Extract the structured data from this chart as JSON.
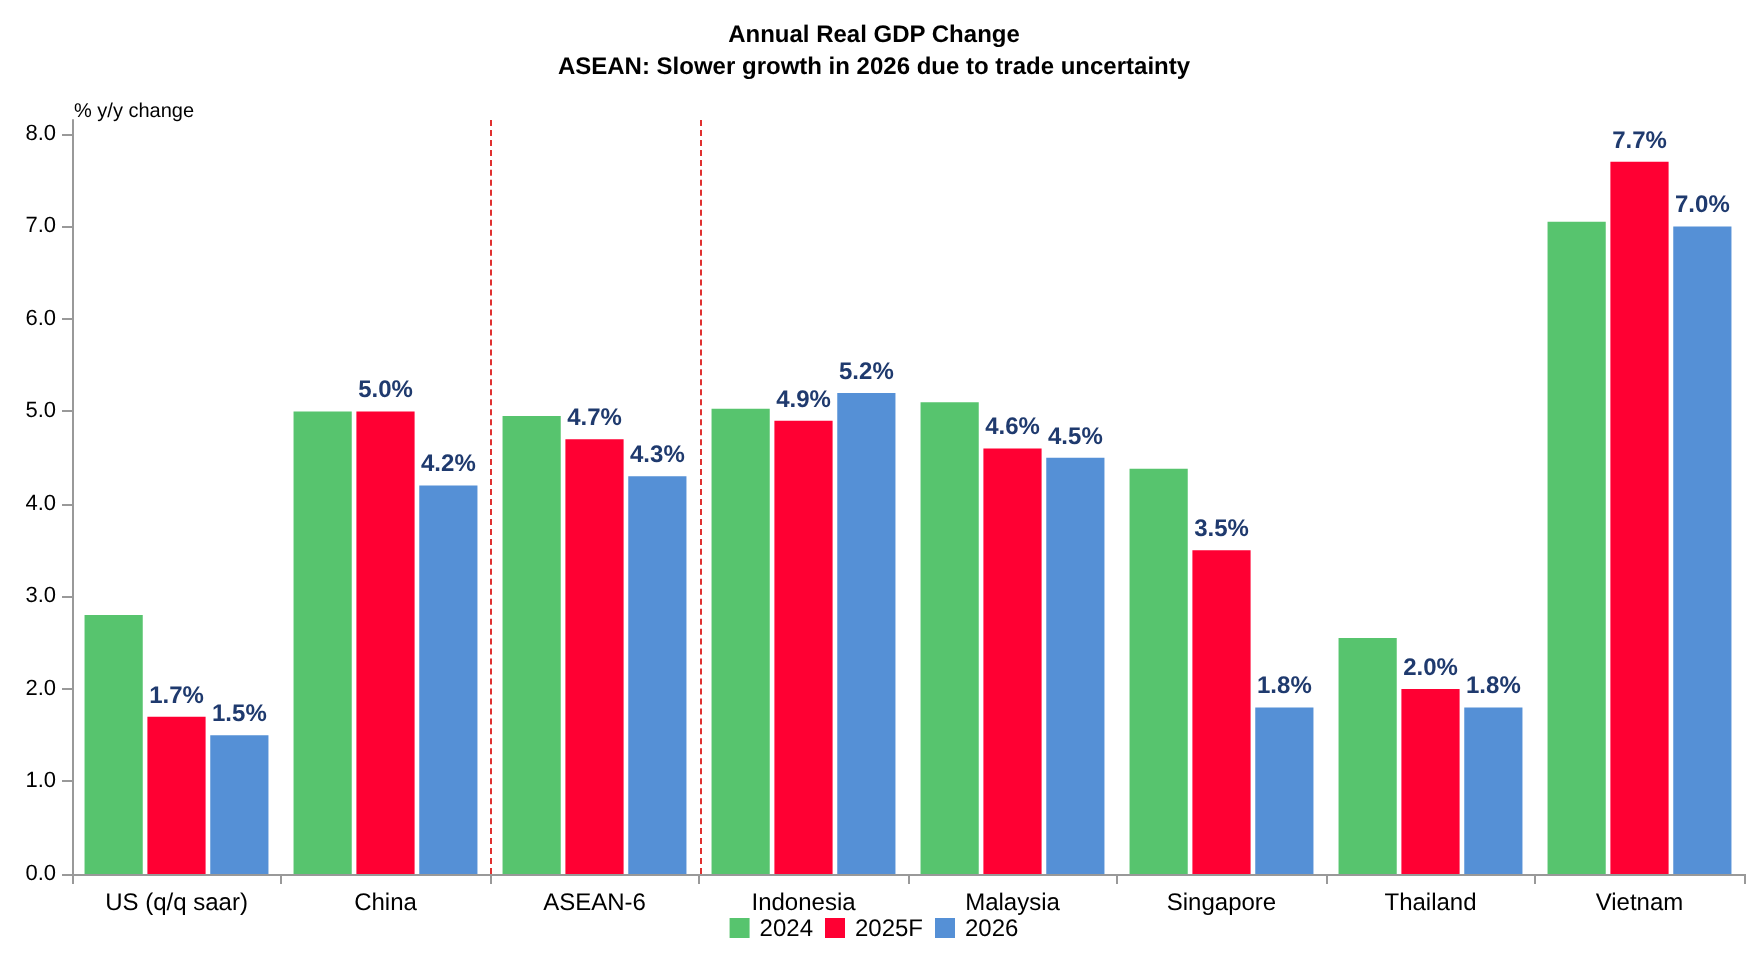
{
  "chart_data": {
    "type": "bar",
    "title": "Annual Real GDP Change",
    "subtitle": "ASEAN: Slower growth in 2026 due to trade uncertainty",
    "ylabel": "% y/y change",
    "categories": [
      "US (q/q saar)",
      "China",
      "ASEAN-6",
      "Indonesia",
      "Malaysia",
      "Singapore",
      "Thailand",
      "Vietnam"
    ],
    "series": [
      {
        "name": "2024",
        "color": "#57c46e",
        "values": [
          2.8,
          5.0,
          4.95,
          5.03,
          5.1,
          4.38,
          2.55,
          7.05
        ]
      },
      {
        "name": "2025F",
        "color": "#ff0033",
        "values": [
          1.7,
          5.0,
          4.7,
          4.9,
          4.6,
          3.5,
          2.0,
          7.7
        ],
        "value_labels": [
          "1.7%",
          "5.0%",
          "4.7%",
          "4.9%",
          "4.6%",
          "3.5%",
          "2.0%",
          "7.7%"
        ]
      },
      {
        "name": "2026",
        "color": "#5590d6",
        "values": [
          1.5,
          4.2,
          4.3,
          5.2,
          4.5,
          1.8,
          1.8,
          7.0
        ],
        "value_labels": [
          "1.5%",
          "4.2%",
          "4.3%",
          "5.2%",
          "4.5%",
          "1.8%",
          "1.8%",
          "7.0%"
        ]
      }
    ],
    "ylim": [
      0,
      8.15
    ],
    "yticks": [
      {
        "value": 0,
        "label": "0.0"
      },
      {
        "value": 1,
        "label": "1.0"
      },
      {
        "value": 2,
        "label": "2.0"
      },
      {
        "value": 3,
        "label": "3.0"
      },
      {
        "value": 4,
        "label": "4.0"
      },
      {
        "value": 5,
        "label": "5.0"
      },
      {
        "value": 6,
        "label": "6.0"
      },
      {
        "value": 7,
        "label": "7.0"
      },
      {
        "value": 8,
        "label": "8.0"
      }
    ],
    "grid": false,
    "legend": "bottom"
  }
}
